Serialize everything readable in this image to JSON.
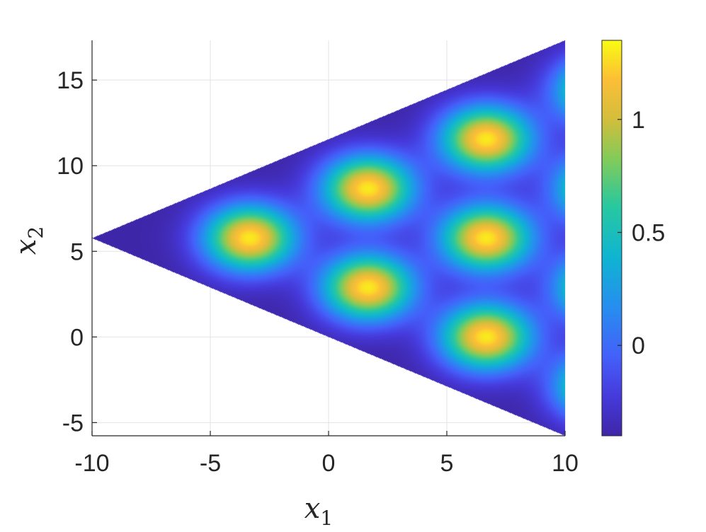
{
  "chart_data": {
    "type": "heatmap",
    "title": "",
    "region": "triangle",
    "triangle_vertices": [
      [
        -10,
        5.77
      ],
      [
        10,
        17.32
      ],
      [
        10,
        -5.77
      ]
    ],
    "field": {
      "peaks": [
        {
          "x": -3.33,
          "y": 5.77,
          "value": 1.3
        },
        {
          "x": 1.67,
          "y": 8.66,
          "value": 1.3
        },
        {
          "x": 1.67,
          "y": 2.89,
          "value": 1.3
        },
        {
          "x": 6.67,
          "y": 11.55,
          "value": 1.3
        },
        {
          "x": 6.67,
          "y": 5.77,
          "value": 1.3
        },
        {
          "x": 6.67,
          "y": 0.0,
          "value": 1.3
        },
        {
          "x": 11.67,
          "y": 14.43,
          "value": 1.3
        },
        {
          "x": 11.67,
          "y": 8.66,
          "value": 1.3
        },
        {
          "x": 11.67,
          "y": 2.89,
          "value": 1.3
        },
        {
          "x": 11.67,
          "y": -2.89,
          "value": 1.3
        }
      ],
      "background": -0.4
    },
    "xlabel": "x",
    "xlabel_sub": "1",
    "ylabel": "x",
    "ylabel_sub": "2",
    "xlim": [
      -10,
      10
    ],
    "ylim": [
      -5.77,
      17.32
    ],
    "xticks": [
      -10,
      -5,
      0,
      5,
      10
    ],
    "xtick_labels": [
      "-10",
      "-5",
      "0",
      "5",
      "10"
    ],
    "yticks": [
      -5,
      0,
      5,
      10,
      15
    ],
    "ytick_labels": [
      "-5",
      "0",
      "5",
      "10",
      "15"
    ],
    "grid": true,
    "colormap": "parula",
    "colorbar": {
      "range": [
        -0.4,
        1.35
      ],
      "ticks": [
        0,
        0.5,
        1
      ],
      "tick_labels": [
        "0",
        "0.5",
        "1"
      ]
    }
  }
}
